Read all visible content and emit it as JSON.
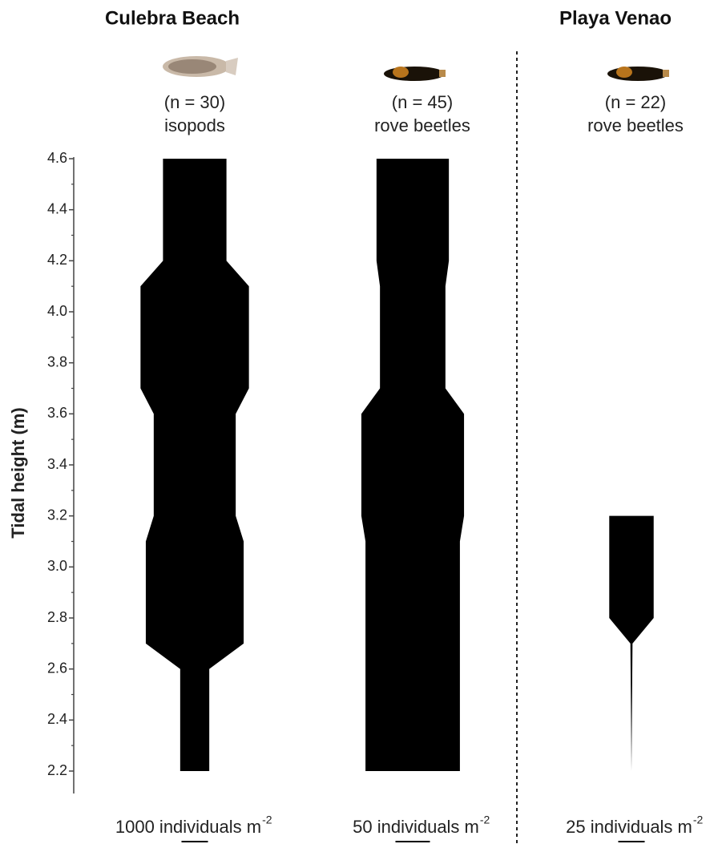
{
  "chart_data": {
    "type": "kite",
    "ylabel": "Tidal height (m)",
    "ylim": [
      2.2,
      4.6
    ],
    "yticks": [
      2.2,
      2.4,
      2.6,
      2.8,
      {
        "value": 3.0,
        "label": "3.0"
      },
      3.2,
      3.4,
      3.6,
      3.8,
      {
        "value": 4.0,
        "label": "4.0"
      },
      4.2,
      4.4,
      4.6
    ],
    "yticks_minor": [
      2.3,
      2.5,
      2.7,
      2.9,
      3.1,
      3.3,
      3.5,
      3.7,
      3.9,
      4.1,
      4.3,
      4.5
    ],
    "sites": [
      "Culebra Beach",
      "Playa Venao"
    ],
    "series": [
      {
        "name": "isopods",
        "n_label": "(n = 30)",
        "site": 0,
        "color": "#000000",
        "heights": [
          4.6,
          4.2,
          4.1,
          3.7,
          3.6,
          3.2,
          3.1,
          2.7,
          2.6,
          2.2
        ],
        "values": [
          2400,
          2400,
          4100,
          4100,
          3100,
          3100,
          3700,
          3700,
          1100,
          1100
        ],
        "scale": {
          "value": 1000,
          "label": "1000 individuals m",
          "exponent": "-2"
        }
      },
      {
        "name": "rove beetles",
        "n_label": "(n = 45)",
        "site": 0,
        "color": "#000000",
        "heights": [
          4.6,
          4.2,
          4.1,
          3.7,
          3.6,
          3.2,
          3.1,
          2.2
        ],
        "values": [
          105,
          105,
          95,
          95,
          149,
          149,
          137,
          137
        ],
        "scale": {
          "value": 50,
          "label": "50 individuals m",
          "exponent": "-2"
        }
      },
      {
        "name": "rove beetles",
        "n_label": "(n = 22)",
        "site": 1,
        "color": "#000000",
        "heights": [
          3.2,
          2.8,
          2.7,
          2.2
        ],
        "values": [
          42,
          42,
          2,
          0
        ],
        "scale": {
          "value": 25,
          "label": "25 individuals m",
          "exponent": "-2"
        }
      }
    ]
  }
}
